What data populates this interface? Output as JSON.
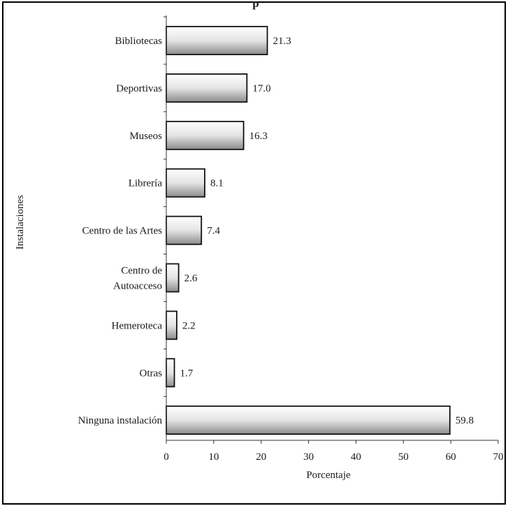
{
  "chart_data": {
    "type": "bar",
    "orientation": "horizontal",
    "title_fragment": "p",
    "categories": [
      "Bibliotecas",
      "Deportivas",
      "Museos",
      "Librería",
      "Centro de las Artes",
      "Centro de Autoacceso",
      "Hemeroteca",
      "Otras",
      "Ninguna instalación"
    ],
    "category_lines": [
      [
        "Bibliotecas"
      ],
      [
        "Deportivas"
      ],
      [
        "Museos"
      ],
      [
        "Librería"
      ],
      [
        "Centro de las Artes"
      ],
      [
        "Centro de",
        "Autoacceso"
      ],
      [
        "Hemeroteca"
      ],
      [
        "Otras"
      ],
      [
        "Ninguna instalación"
      ]
    ],
    "values": [
      21.3,
      17.0,
      16.3,
      8.1,
      7.4,
      2.6,
      2.2,
      1.7,
      59.8
    ],
    "value_labels": [
      "21.3",
      "17.0",
      "16.3",
      "8.1",
      "7.4",
      "2.6",
      "2.2",
      "1.7",
      "59.8"
    ],
    "xlabel": "Porcentaje",
    "ylabel": "Instalaciones",
    "xlim": [
      0,
      70
    ],
    "xticks": [
      0,
      10,
      20,
      30,
      40,
      50,
      60,
      70
    ],
    "grid": false,
    "legend": "none",
    "colors": {
      "bar_light": "#ffffff",
      "bar_dark": "#8c8c8c",
      "bar_stroke": "#111111",
      "axis": "#333333",
      "text": "#1a1a1a"
    }
  }
}
